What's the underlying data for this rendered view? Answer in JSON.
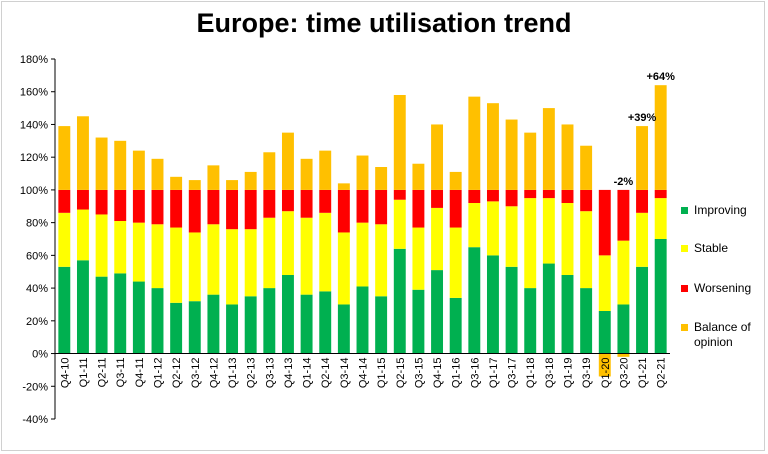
{
  "chart_data": {
    "type": "bar",
    "title": "Europe: time utilisation trend",
    "stacked": true,
    "categories": [
      "Q4-10",
      "Q1-11",
      "Q2-11",
      "Q3-11",
      "Q4-11",
      "Q1-12",
      "Q2-12",
      "Q3-12",
      "Q4-12",
      "Q1-13",
      "Q2-13",
      "Q3-13",
      "Q4-13",
      "Q1-14",
      "Q2-14",
      "Q3-14",
      "Q4-14",
      "Q1-15",
      "Q2-15",
      "Q3-15",
      "Q4-15",
      "Q1-16",
      "Q3-16",
      "Q1-17",
      "Q3-17",
      "Q1-18",
      "Q3-18",
      "Q1-19",
      "Q3-19",
      "Q1-20",
      "Q3-20",
      "Q1-21",
      "Q2-21"
    ],
    "series": [
      {
        "name": "Improving",
        "color": "#00b050",
        "values": [
          53,
          57,
          47,
          49,
          44,
          40,
          31,
          32,
          36,
          30,
          35,
          40,
          48,
          36,
          38,
          30,
          41,
          35,
          64,
          39,
          51,
          34,
          65,
          60,
          53,
          40,
          55,
          48,
          40,
          26,
          30,
          53,
          70
        ]
      },
      {
        "name": "Stable",
        "color": "#ffff00",
        "values": [
          33,
          31,
          38,
          32,
          36,
          39,
          46,
          42,
          43,
          46,
          41,
          43,
          39,
          47,
          48,
          44,
          39,
          44,
          30,
          38,
          38,
          43,
          27,
          33,
          37,
          55,
          40,
          44,
          47,
          34,
          39,
          33,
          25
        ]
      },
      {
        "name": "Worsening",
        "color": "#ff0000",
        "values": [
          14,
          12,
          15,
          19,
          20,
          21,
          23,
          26,
          21,
          24,
          24,
          17,
          13,
          17,
          14,
          26,
          20,
          21,
          6,
          23,
          11,
          23,
          8,
          7,
          10,
          5,
          5,
          8,
          13,
          40,
          31,
          14,
          5
        ]
      },
      {
        "name": "Balance of opinion",
        "color": "#ffc000",
        "values": [
          39,
          45,
          32,
          30,
          24,
          19,
          8,
          6,
          15,
          6,
          11,
          23,
          35,
          19,
          24,
          4,
          21,
          14,
          58,
          16,
          40,
          11,
          57,
          53,
          43,
          35,
          50,
          40,
          27,
          -14,
          -2,
          39,
          64
        ]
      }
    ],
    "yticks": [
      "-40%",
      "-20%",
      "0%",
      "20%",
      "40%",
      "60%",
      "80%",
      "100%",
      "120%",
      "140%",
      "160%",
      "180%"
    ],
    "ylim": [
      -40,
      180
    ],
    "annotations": [
      {
        "category": "Q3-20",
        "text": "-2%"
      },
      {
        "category": "Q1-21",
        "text": "+39%"
      },
      {
        "category": "Q2-21",
        "text": "+64%"
      }
    ],
    "legend_position": "right",
    "grid": false
  }
}
